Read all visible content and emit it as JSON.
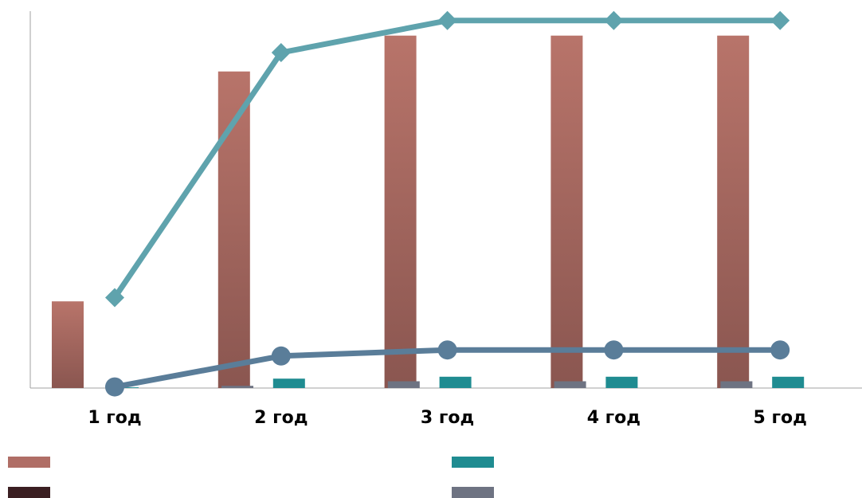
{
  "chart_data": {
    "type": "bar",
    "title": "",
    "xlabel": "",
    "ylabel": "",
    "grid": false,
    "legend_placement": "bottom",
    "categories": [
      "1 год",
      "2 год",
      "3 год",
      "4 год",
      "5 год"
    ],
    "ylim": [
      0,
      100
    ],
    "bar_series": [
      {
        "color": "#b06e66",
        "values": [
          23,
          84,
          93.5,
          93.5,
          93.5
        ]
      },
      {
        "color": "#1f8c91",
        "values": [
          0.2,
          2.5,
          3,
          3,
          3
        ]
      },
      {
        "color": "#3b1f22",
        "values": [
          0,
          0,
          0,
          0,
          0
        ]
      },
      {
        "color": "#6e7382",
        "values": [
          0.6,
          1.8,
          1.8,
          1.8,
          1.8
        ]
      }
    ],
    "line_series": [
      {
        "color": "#5fa3ad",
        "marker": "diamond",
        "values": [
          24,
          89,
          97.5,
          97.5,
          97.5
        ]
      },
      {
        "color": "#5a7d99",
        "marker": "circle",
        "values": [
          0.3,
          8.5,
          10.1,
          10.1,
          10.1
        ]
      }
    ],
    "legend": [
      {
        "color": "#b06e66"
      },
      {
        "color": "#1f8c91"
      },
      {
        "color": "#3b1f22"
      },
      {
        "color": "#6e7382"
      }
    ]
  }
}
